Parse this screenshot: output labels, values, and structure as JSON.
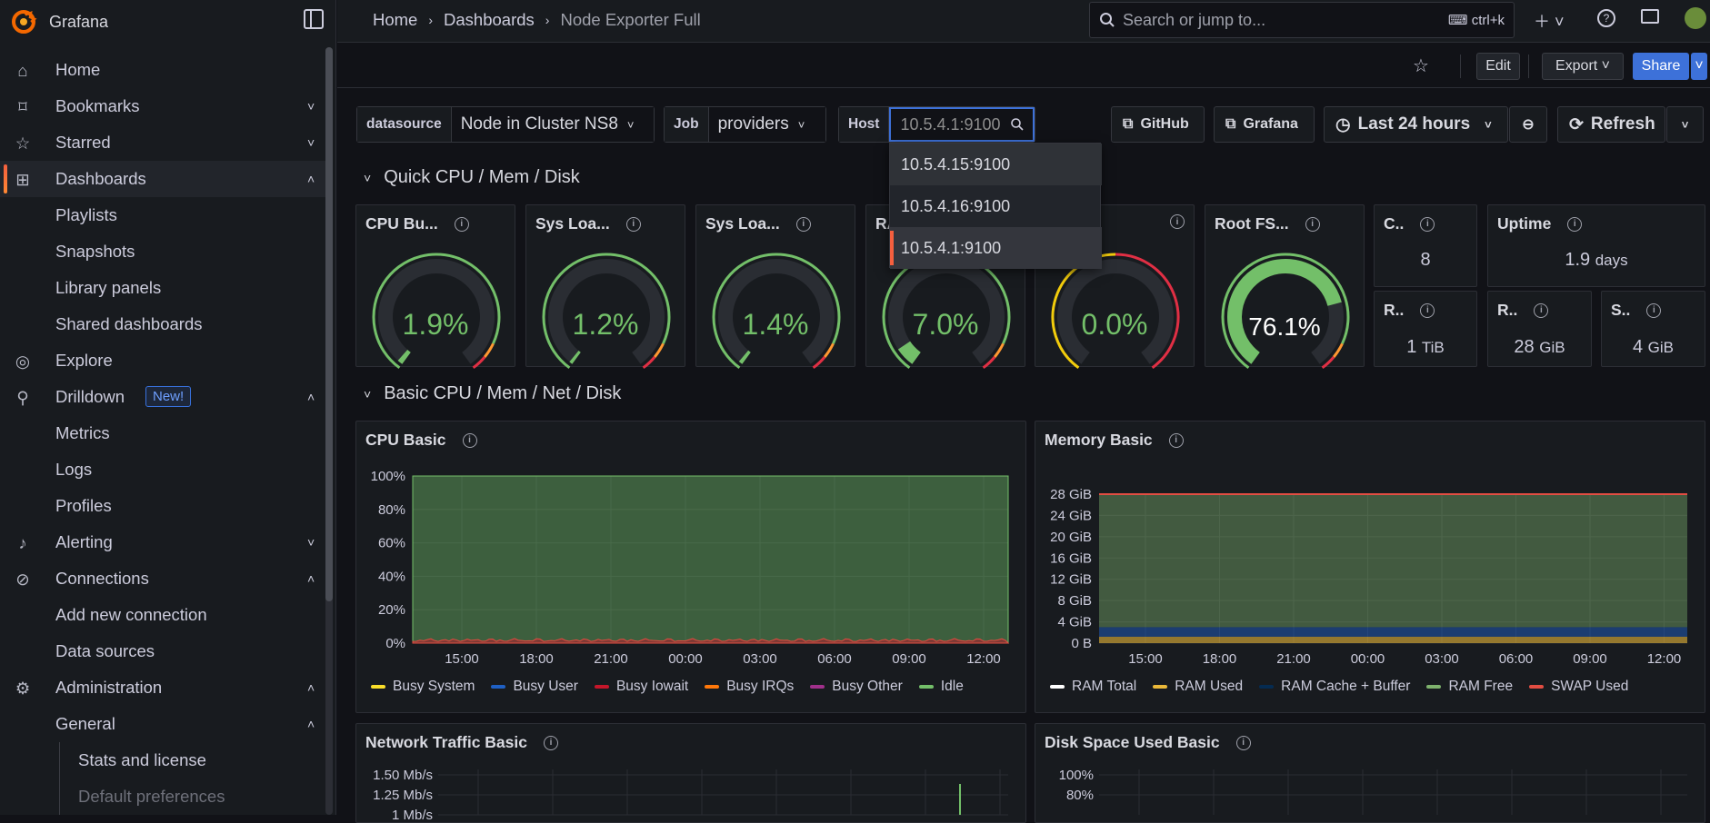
{
  "brand": {
    "name": "Grafana"
  },
  "sidebar": {
    "items": [
      {
        "label": "Home",
        "icon": "home-icon"
      },
      {
        "label": "Bookmarks",
        "icon": "bookmark-icon"
      },
      {
        "label": "Starred",
        "icon": "star-icon"
      },
      {
        "label": "Dashboards",
        "icon": "dashboards-icon"
      },
      {
        "label": "Playlists"
      },
      {
        "label": "Snapshots"
      },
      {
        "label": "Library panels"
      },
      {
        "label": "Shared dashboards"
      },
      {
        "label": "Explore",
        "icon": "compass-icon"
      },
      {
        "label": "Drilldown",
        "icon": "drilldown-icon",
        "badge": "New!"
      },
      {
        "label": "Metrics"
      },
      {
        "label": "Logs"
      },
      {
        "label": "Profiles"
      },
      {
        "label": "Alerting",
        "icon": "bell-icon"
      },
      {
        "label": "Connections",
        "icon": "connections-icon"
      },
      {
        "label": "Add new connection"
      },
      {
        "label": "Data sources"
      },
      {
        "label": "Administration",
        "icon": "gear-icon"
      },
      {
        "label": "General"
      },
      {
        "label": "Stats and license"
      },
      {
        "label": "Default preferences"
      }
    ]
  },
  "header": {
    "breadcrumb": [
      "Home",
      "Dashboards",
      "Node Exporter Full"
    ],
    "search": {
      "placeholder": "Search or jump to...",
      "shortcut": "ctrl+k"
    }
  },
  "toolbar": {
    "edit": "Edit",
    "export": "Export",
    "share": "Share"
  },
  "variables": {
    "datasource": {
      "label": "datasource",
      "value": "Node in Cluster NS8"
    },
    "job": {
      "label": "Job",
      "value": "providers"
    },
    "host": {
      "label": "Host",
      "value": "10.5.4.1:9100"
    }
  },
  "host_options": [
    "10.5.4.15:9100",
    "10.5.4.16:9100",
    "10.5.4.1:9100"
  ],
  "links": {
    "github": "GitHub",
    "grafana": "Grafana"
  },
  "time_range": "Last 24 hours",
  "refresh": "Refresh",
  "colors": {
    "accent": "#f55f3e",
    "green": "#73bf69",
    "share": "#3d71d9"
  },
  "row1": {
    "title": "Quick CPU / Mem / Disk"
  },
  "gauges": [
    {
      "title": "CPU Bu...",
      "value": "1.9%",
      "pct": 1.9
    },
    {
      "title": "Sys Loa...",
      "value": "1.2%",
      "pct": 1.2
    },
    {
      "title": "Sys Loa...",
      "value": "1.4%",
      "pct": 1.4
    },
    {
      "title": "RA",
      "value": "7.0%",
      "pct": 7.0
    },
    {
      "title": "",
      "value": "0.0%",
      "pct": 0.0
    },
    {
      "title": "Root FS...",
      "value": "76.1%",
      "pct": 76.1
    }
  ],
  "stats": [
    {
      "title": "C..",
      "value": "8",
      "unit": ""
    },
    {
      "title": "Uptime",
      "value": "1.9",
      "unit": "days"
    },
    {
      "title": "R..",
      "value": "1",
      "unit": "TiB"
    },
    {
      "title": "R..",
      "value": "28",
      "unit": "GiB"
    },
    {
      "title": "S..",
      "value": "4",
      "unit": "GiB"
    }
  ],
  "row2": {
    "title": "Basic CPU / Mem / Net / Disk"
  },
  "cpu_panel": {
    "title": "CPU Basic"
  },
  "mem_panel": {
    "title": "Memory Basic"
  },
  "net_panel": {
    "title": "Network Traffic Basic"
  },
  "disk_panel": {
    "title": "Disk Space Used Basic"
  },
  "chart_data": [
    {
      "type": "area",
      "title": "CPU Basic",
      "x": [
        "15:00",
        "18:00",
        "21:00",
        "00:00",
        "03:00",
        "06:00",
        "09:00",
        "12:00"
      ],
      "yticks": [
        "100%",
        "80%",
        "60%",
        "40%",
        "20%",
        "0%"
      ],
      "ylim": [
        0,
        100
      ],
      "series": [
        {
          "name": "Busy System",
          "color": "#fade2a"
        },
        {
          "name": "Busy User",
          "color": "#1f60c4"
        },
        {
          "name": "Busy Iowait",
          "color": "#c4162a"
        },
        {
          "name": "Busy IRQs",
          "color": "#ff780a"
        },
        {
          "name": "Busy Other",
          "color": "#a0308b"
        },
        {
          "name": "Idle",
          "color": "#73bf69",
          "values": [
            98,
            98,
            98,
            98,
            98,
            98,
            98,
            98
          ]
        }
      ]
    },
    {
      "type": "area",
      "title": "Memory Basic",
      "x": [
        "15:00",
        "18:00",
        "21:00",
        "00:00",
        "03:00",
        "06:00",
        "09:00",
        "12:00"
      ],
      "yticks": [
        "28 GiB",
        "24 GiB",
        "20 GiB",
        "16 GiB",
        "12 GiB",
        "8 GiB",
        "4 GiB",
        "0 B"
      ],
      "ylim": [
        0,
        28
      ],
      "series": [
        {
          "name": "RAM Total",
          "color": "#ffffff",
          "values": [
            28,
            28,
            28,
            28,
            28,
            28,
            28,
            28
          ]
        },
        {
          "name": "RAM Used",
          "color": "#eab839",
          "values": [
            1.2,
            1.2,
            1.2,
            1.2,
            1.2,
            1.2,
            1.2,
            1.2
          ]
        },
        {
          "name": "RAM Cache + Buffer",
          "color": "#052b51",
          "values": [
            1.8,
            1.8,
            1.8,
            1.8,
            1.8,
            1.8,
            1.8,
            1.8
          ]
        },
        {
          "name": "RAM Free",
          "color": "#7eb26d",
          "values": [
            25,
            25,
            25,
            25,
            25,
            25,
            25,
            25
          ]
        },
        {
          "name": "SWAP Used",
          "color": "#e24d42"
        }
      ]
    },
    {
      "type": "line",
      "title": "Network Traffic Basic",
      "yticks": [
        "1.50 Mb/s",
        "1.25 Mb/s",
        "1 Mb/s"
      ]
    },
    {
      "type": "line",
      "title": "Disk Space Used Basic",
      "yticks": [
        "100%",
        "80%"
      ]
    }
  ]
}
